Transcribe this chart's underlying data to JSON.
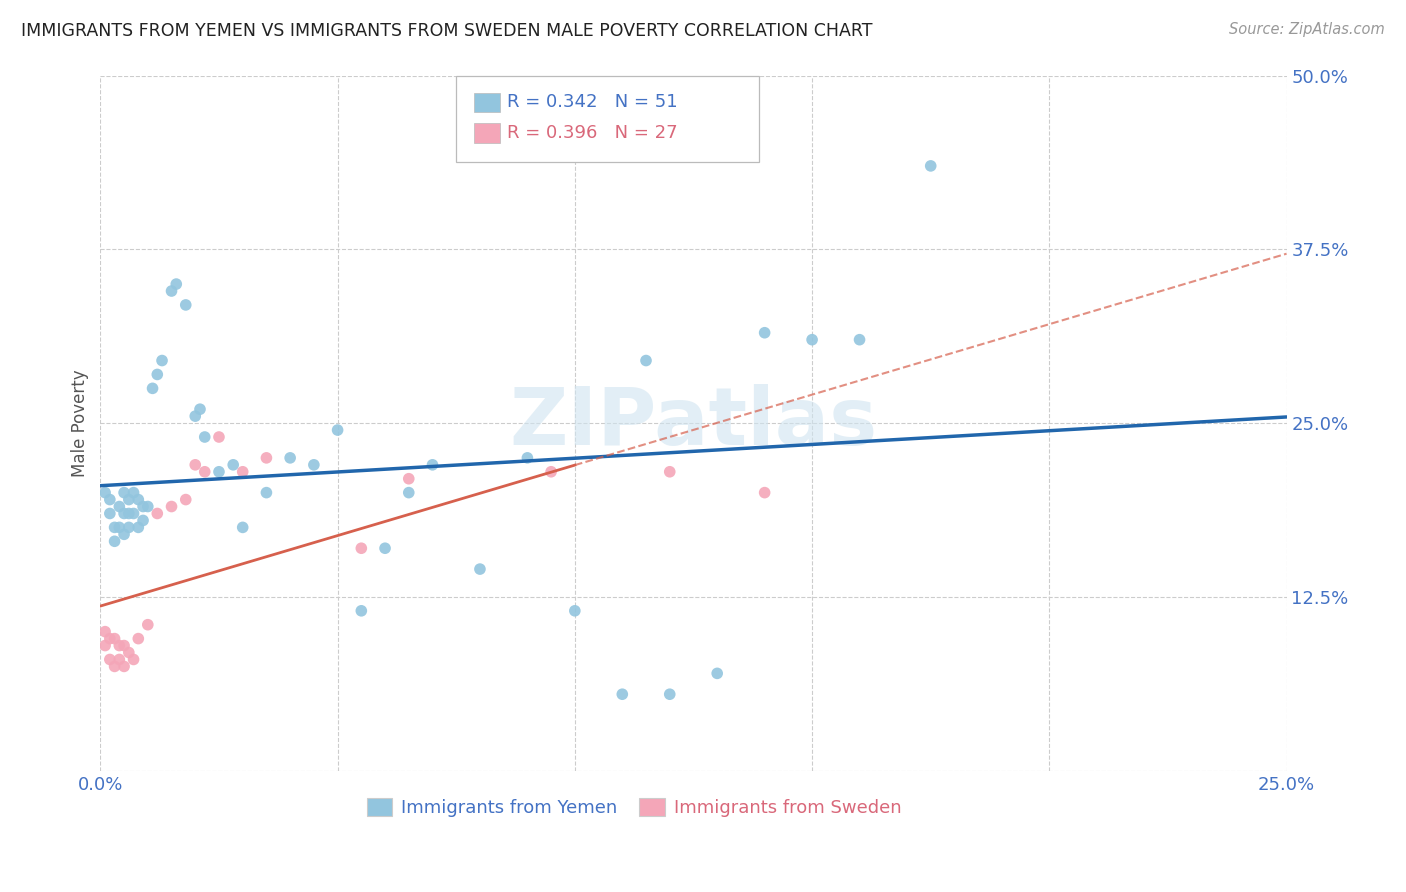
{
  "title": "IMMIGRANTS FROM YEMEN VS IMMIGRANTS FROM SWEDEN MALE POVERTY CORRELATION CHART",
  "source": "Source: ZipAtlas.com",
  "ylabel": "Male Poverty",
  "xlim": [
    0.0,
    0.25
  ],
  "ylim": [
    0.0,
    0.5
  ],
  "xtick_vals": [
    0.0,
    0.05,
    0.1,
    0.15,
    0.2,
    0.25
  ],
  "ytick_vals": [
    0.0,
    0.125,
    0.25,
    0.375,
    0.5
  ],
  "xtick_labels": [
    "0.0%",
    "",
    "",
    "",
    "",
    "25.0%"
  ],
  "ytick_labels": [
    "",
    "12.5%",
    "25.0%",
    "37.5%",
    "50.0%"
  ],
  "legend_labels": [
    "Immigrants from Yemen",
    "Immigrants from Sweden"
  ],
  "watermark": "ZIPatlas",
  "blue_color": "#92c5de",
  "pink_color": "#f4a6b8",
  "blue_line_color": "#2166ac",
  "pink_line_color": "#d6604d",
  "scatter_size": 70,
  "yemen_x": [
    0.001,
    0.002,
    0.002,
    0.003,
    0.003,
    0.004,
    0.004,
    0.005,
    0.005,
    0.005,
    0.006,
    0.006,
    0.006,
    0.007,
    0.007,
    0.008,
    0.008,
    0.009,
    0.009,
    0.01,
    0.011,
    0.012,
    0.013,
    0.015,
    0.016,
    0.018,
    0.02,
    0.021,
    0.022,
    0.025,
    0.028,
    0.03,
    0.035,
    0.04,
    0.045,
    0.05,
    0.055,
    0.06,
    0.065,
    0.07,
    0.08,
    0.09,
    0.1,
    0.11,
    0.115,
    0.12,
    0.13,
    0.14,
    0.15,
    0.16,
    0.175
  ],
  "yemen_y": [
    0.2,
    0.195,
    0.185,
    0.175,
    0.165,
    0.19,
    0.175,
    0.2,
    0.185,
    0.17,
    0.195,
    0.185,
    0.175,
    0.2,
    0.185,
    0.195,
    0.175,
    0.19,
    0.18,
    0.19,
    0.275,
    0.285,
    0.295,
    0.345,
    0.35,
    0.335,
    0.255,
    0.26,
    0.24,
    0.215,
    0.22,
    0.175,
    0.2,
    0.225,
    0.22,
    0.245,
    0.115,
    0.16,
    0.2,
    0.22,
    0.145,
    0.225,
    0.115,
    0.055,
    0.295,
    0.055,
    0.07,
    0.315,
    0.31,
    0.31,
    0.435
  ],
  "sweden_x": [
    0.001,
    0.001,
    0.002,
    0.002,
    0.003,
    0.003,
    0.004,
    0.004,
    0.005,
    0.005,
    0.006,
    0.007,
    0.008,
    0.01,
    0.012,
    0.015,
    0.018,
    0.02,
    0.022,
    0.025,
    0.03,
    0.035,
    0.055,
    0.065,
    0.095,
    0.12,
    0.14
  ],
  "sweden_y": [
    0.1,
    0.09,
    0.095,
    0.08,
    0.095,
    0.075,
    0.09,
    0.08,
    0.09,
    0.075,
    0.085,
    0.08,
    0.095,
    0.105,
    0.185,
    0.19,
    0.195,
    0.22,
    0.215,
    0.24,
    0.215,
    0.225,
    0.16,
    0.21,
    0.215,
    0.215,
    0.2
  ]
}
